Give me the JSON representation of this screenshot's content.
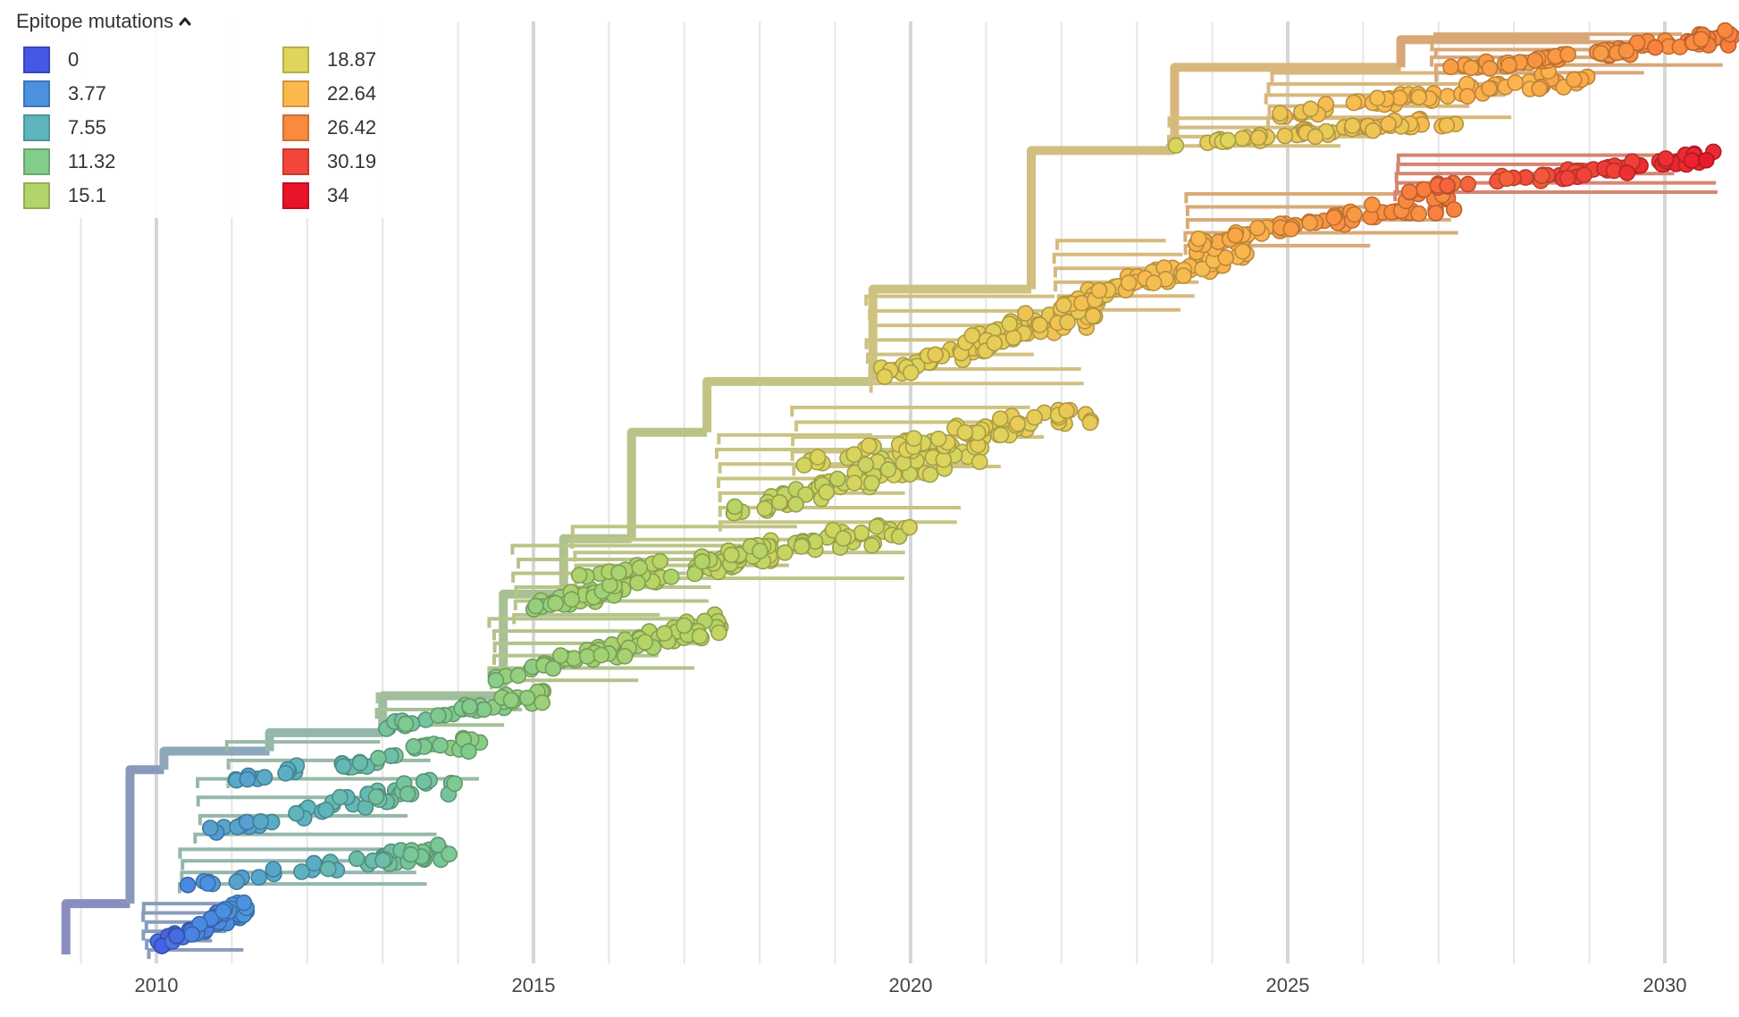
{
  "legend": {
    "title": "Epitope mutations",
    "items": [
      {
        "label": "0",
        "color": "#4458e6"
      },
      {
        "label": "3.77",
        "color": "#4c90e0"
      },
      {
        "label": "7.55",
        "color": "#5fb5bc"
      },
      {
        "label": "11.32",
        "color": "#82cc8c"
      },
      {
        "label": "15.1",
        "color": "#b2d468"
      },
      {
        "label": "18.87",
        "color": "#dfd45c"
      },
      {
        "label": "22.64",
        "color": "#fbb84e"
      },
      {
        "label": "26.42",
        "color": "#fa8a3e"
      },
      {
        "label": "30.19",
        "color": "#f2463a"
      },
      {
        "label": "34",
        "color": "#e8142a"
      }
    ]
  },
  "chart_data": {
    "type": "scatter",
    "title": "",
    "xlabel": "",
    "ylabel": "",
    "x_ticks": [
      2010,
      2015,
      2020,
      2025,
      2030
    ],
    "xlim": [
      2008.7,
      2030.9
    ],
    "color_by": "Epitope mutations",
    "color_range": [
      0,
      34
    ],
    "grid": true,
    "legend_position": "top-left",
    "trunk": [
      {
        "x": 2008.8,
        "y": 0,
        "v": 0
      },
      {
        "x": 2009.65,
        "y": 0.055,
        "v": 1
      },
      {
        "x": 2010.1,
        "y": 0.2,
        "v": 3
      },
      {
        "x": 2011.5,
        "y": 0.22,
        "v": 6
      },
      {
        "x": 2013.0,
        "y": 0.24,
        "v": 9
      },
      {
        "x": 2014.6,
        "y": 0.28,
        "v": 11
      },
      {
        "x": 2015.4,
        "y": 0.39,
        "v": 13
      },
      {
        "x": 2016.3,
        "y": 0.45,
        "v": 14
      },
      {
        "x": 2017.3,
        "y": 0.565,
        "v": 16
      },
      {
        "x": 2019.5,
        "y": 0.62,
        "v": 18
      },
      {
        "x": 2021.6,
        "y": 0.72,
        "v": 20
      },
      {
        "x": 2023.5,
        "y": 0.87,
        "v": 21
      },
      {
        "x": 2026.5,
        "y": 0.96,
        "v": 24
      },
      {
        "x": 2029.0,
        "y": 0.99,
        "v": 27
      }
    ],
    "clusters": [
      {
        "x0": 2009.9,
        "x1": 2011.2,
        "y0": 0.0,
        "y1": 0.06,
        "v0": 1,
        "v1": 4,
        "n": 70
      },
      {
        "x0": 2010.4,
        "x1": 2013.9,
        "y0": 0.07,
        "y1": 0.12,
        "v0": 4,
        "v1": 11,
        "n": 45
      },
      {
        "x0": 2010.6,
        "x1": 2014.0,
        "y0": 0.12,
        "y1": 0.2,
        "v0": 5,
        "v1": 11,
        "n": 45
      },
      {
        "x0": 2011.0,
        "x1": 2014.3,
        "y0": 0.18,
        "y1": 0.24,
        "v0": 6,
        "v1": 12,
        "n": 40
      },
      {
        "x0": 2013.0,
        "x1": 2015.2,
        "y0": 0.24,
        "y1": 0.29,
        "v0": 10,
        "v1": 13,
        "n": 40
      },
      {
        "x0": 2014.5,
        "x1": 2017.5,
        "y0": 0.29,
        "y1": 0.37,
        "v0": 12,
        "v1": 16,
        "n": 70
      },
      {
        "x0": 2014.8,
        "x1": 2018.2,
        "y0": 0.36,
        "y1": 0.45,
        "v0": 13,
        "v1": 17,
        "n": 70
      },
      {
        "x0": 2015.6,
        "x1": 2020.0,
        "y0": 0.4,
        "y1": 0.47,
        "v0": 14,
        "v1": 18,
        "n": 55
      },
      {
        "x0": 2017.5,
        "x1": 2021.0,
        "y0": 0.46,
        "y1": 0.57,
        "v0": 16,
        "v1": 19,
        "n": 80
      },
      {
        "x0": 2018.5,
        "x1": 2022.4,
        "y0": 0.52,
        "y1": 0.6,
        "v0": 18,
        "v1": 20,
        "n": 60
      },
      {
        "x0": 2019.5,
        "x1": 2022.5,
        "y0": 0.61,
        "y1": 0.72,
        "v0": 19,
        "v1": 21,
        "n": 80
      },
      {
        "x0": 2022.0,
        "x1": 2024.5,
        "y0": 0.69,
        "y1": 0.78,
        "v0": 21,
        "v1": 23,
        "n": 70
      },
      {
        "x0": 2023.7,
        "x1": 2027.3,
        "y0": 0.76,
        "y1": 0.83,
        "v0": 23,
        "v1": 27,
        "n": 65
      },
      {
        "x0": 2026.5,
        "x1": 2030.7,
        "y0": 0.82,
        "y1": 0.87,
        "v0": 27,
        "v1": 33,
        "n": 65
      },
      {
        "x0": 2023.5,
        "x1": 2027.3,
        "y0": 0.87,
        "y1": 0.91,
        "v0": 19,
        "v1": 22,
        "n": 50
      },
      {
        "x0": 2024.8,
        "x1": 2029.0,
        "y0": 0.9,
        "y1": 0.96,
        "v0": 21,
        "v1": 24,
        "n": 60
      },
      {
        "x0": 2027.0,
        "x1": 2030.9,
        "y0": 0.95,
        "y1": 1.0,
        "v0": 24,
        "v1": 27,
        "n": 75
      }
    ]
  }
}
